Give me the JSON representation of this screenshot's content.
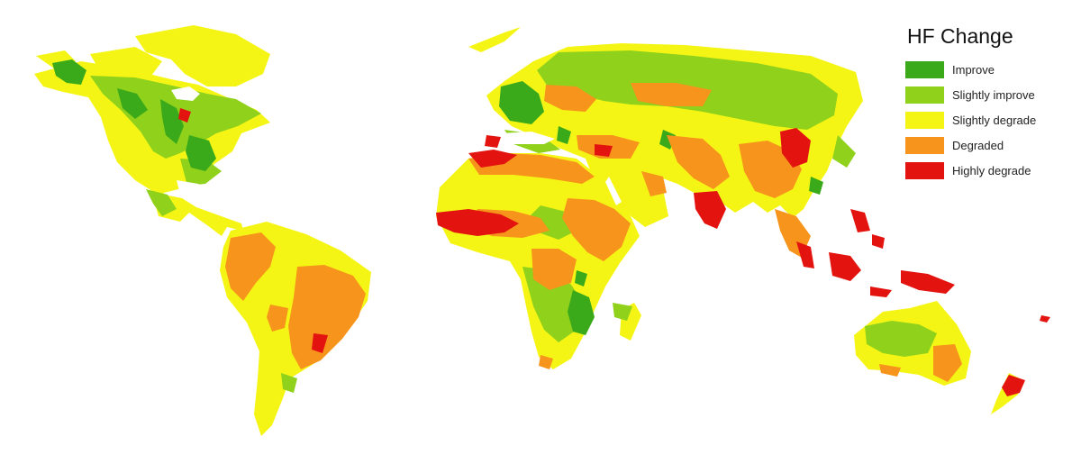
{
  "map": {
    "title": "HF Change",
    "colors": {
      "improve": "#3aaa1a",
      "slightly_improve": "#8fd11b",
      "slightly_degrade": "#f5f515",
      "degraded": "#f7941c",
      "highly_degrade": "#e3140f"
    }
  },
  "legend": {
    "title": "HF Change",
    "items": [
      {
        "key": "improve",
        "label": "Improve",
        "color": "#3aaa1a"
      },
      {
        "key": "slightly_improve",
        "label": "Slightly improve",
        "color": "#8fd11b"
      },
      {
        "key": "slightly_degrade",
        "label": "Slightly degrade",
        "color": "#f5f515"
      },
      {
        "key": "degraded",
        "label": "Degraded",
        "color": "#f7941c"
      },
      {
        "key": "highly_degrade",
        "label": "Highly degrade",
        "color": "#e3140f"
      }
    ]
  }
}
